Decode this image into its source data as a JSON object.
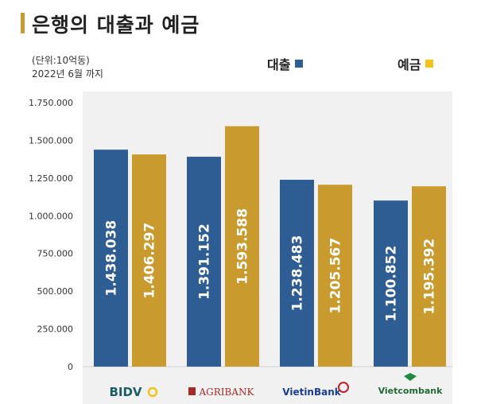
{
  "title": "은행의 대출과 예금",
  "unit_line1": "(단위:10억동)",
  "unit_line2": "2022년 6월 까지",
  "legend": [
    {
      "label": "대출",
      "color": "#2e5d94"
    },
    {
      "label": "예금",
      "color": "#f2c318"
    }
  ],
  "chart_data": {
    "type": "bar",
    "categories": [
      "BIDV",
      "AGRIBANK",
      "VietinBank",
      "Vietcombank"
    ],
    "series": [
      {
        "name": "대출",
        "color": "#2e5d94",
        "values": [
          1438038,
          1391152,
          1238483,
          1100852
        ],
        "labels": [
          "1.438.038",
          "1.391.152",
          "1.238.483",
          "1.100.852"
        ]
      },
      {
        "name": "예금",
        "color": "#c99a2e",
        "values": [
          1406297,
          1593588,
          1205567,
          1195392
        ],
        "labels": [
          "1.406.297",
          "1.593.588",
          "1.205.567",
          "1.195.392"
        ]
      }
    ],
    "yticks": [
      0,
      250000,
      500000,
      750000,
      1000000,
      1250000,
      1500000,
      1750000
    ],
    "ytick_labels": [
      "0",
      "250.000",
      "500.000",
      "750.000",
      "1.000.000",
      "1.250.000",
      "1.500.000",
      "1.750.000"
    ],
    "ylim": [
      0,
      1750000
    ],
    "grid": false
  }
}
